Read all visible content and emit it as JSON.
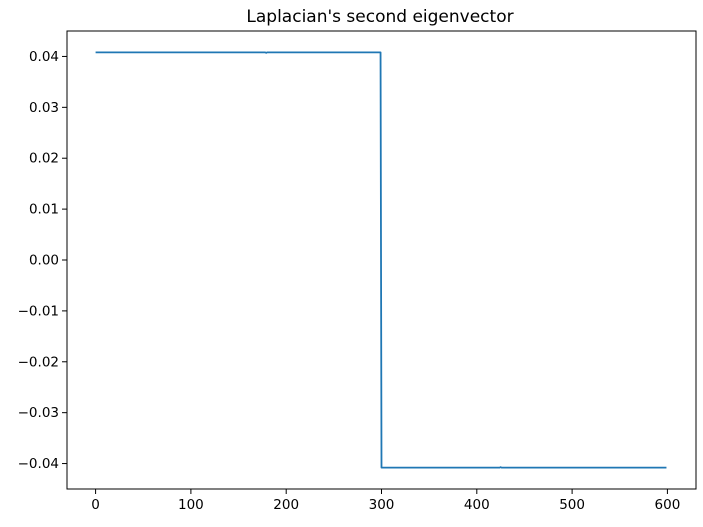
{
  "chart_data": {
    "type": "line",
    "title": "Laplacian's second eigenvector",
    "xlabel": "",
    "ylabel": "",
    "xlim": [
      -30,
      630
    ],
    "ylim": [
      -0.045,
      0.045
    ],
    "xticks": [
      0,
      100,
      200,
      300,
      400,
      500,
      600
    ],
    "xtick_labels": [
      "0",
      "100",
      "200",
      "300",
      "400",
      "500",
      "600"
    ],
    "yticks": [
      0.04,
      0.03,
      0.02,
      0.01,
      0.0,
      -0.01,
      -0.02,
      -0.03,
      -0.04
    ],
    "ytick_labels": [
      "0.04",
      "0.03",
      "0.02",
      "0.01",
      "0.00",
      "−0.01",
      "−0.02",
      "−0.03",
      "−0.04"
    ],
    "grid": false,
    "series": [
      {
        "color": "#1f77b4",
        "x": [
          0,
          178,
          179,
          180,
          299,
          300,
          424,
          425,
          426,
          599
        ],
        "y": [
          0.0408,
          0.0408,
          0.0407,
          0.0408,
          0.0408,
          -0.0408,
          -0.0408,
          -0.0407,
          -0.0408,
          -0.0408
        ]
      }
    ]
  }
}
